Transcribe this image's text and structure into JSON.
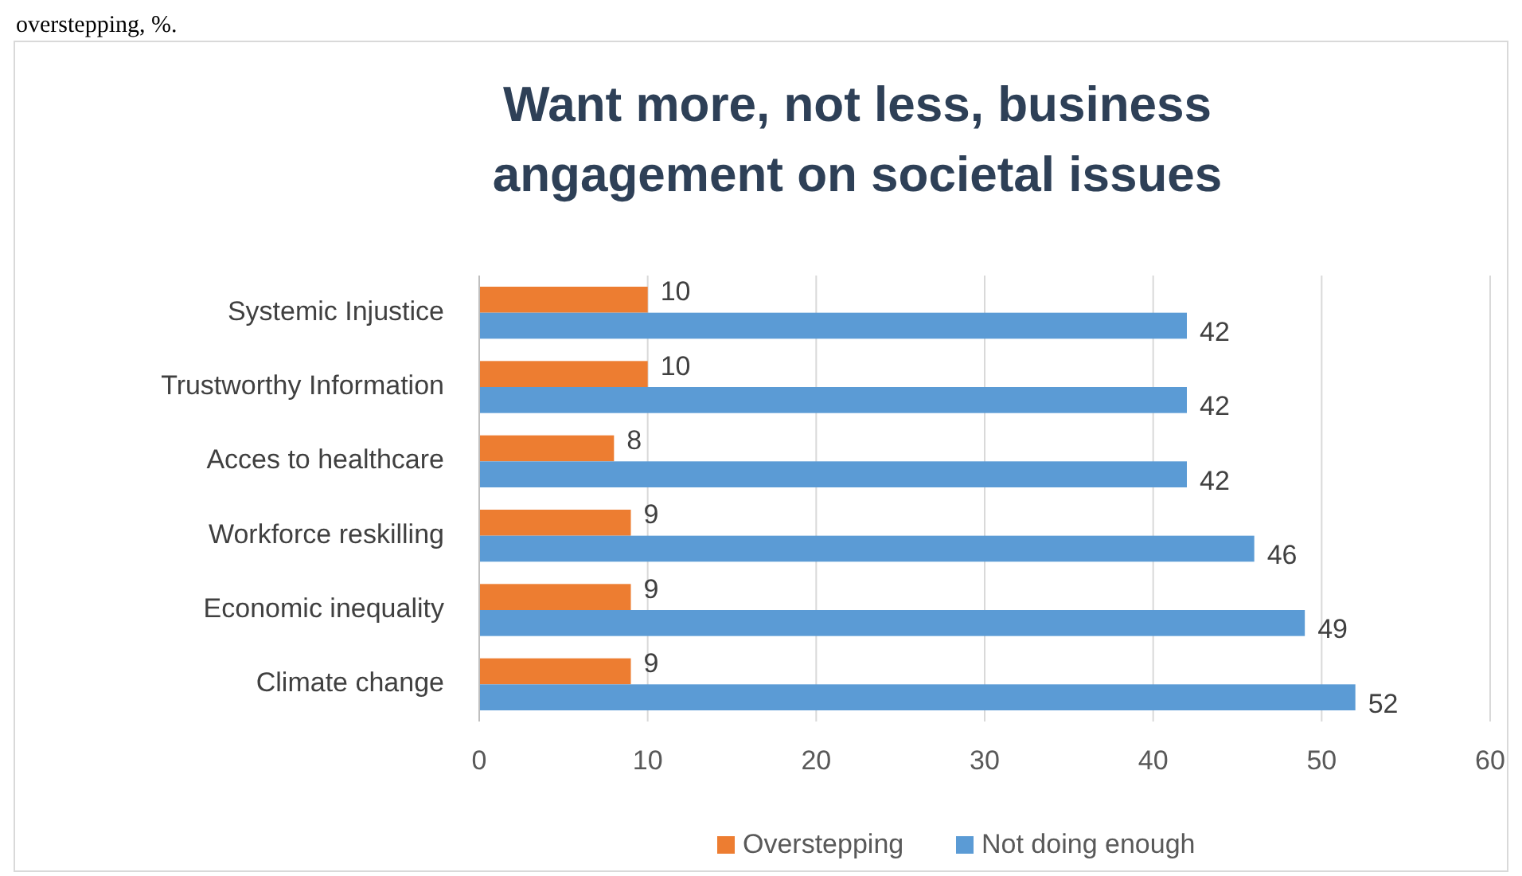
{
  "chart_data": {
    "type": "bar",
    "orientation": "horizontal",
    "title": "Want more, not less, business angagement on societal issues",
    "annotations": [
      "overstepping, %."
    ],
    "categories": [
      "Systemic Injustice",
      "Trustworthy Information",
      "Acces to healthcare",
      "Workforce reskilling",
      "Economic inequality",
      "Climate change"
    ],
    "series": [
      {
        "name": "Overstepping",
        "color": "#ed7d31",
        "values": [
          10,
          10,
          8,
          9,
          9,
          9
        ]
      },
      {
        "name": "Not doing enough",
        "color": "#5b9bd5",
        "values": [
          42,
          42,
          42,
          46,
          49,
          52
        ]
      }
    ],
    "xlim": [
      0,
      60
    ],
    "xticks": [
      0,
      10,
      20,
      30,
      40,
      50,
      60
    ],
    "grid": "x",
    "legend": "bottom",
    "data_labels": true
  }
}
